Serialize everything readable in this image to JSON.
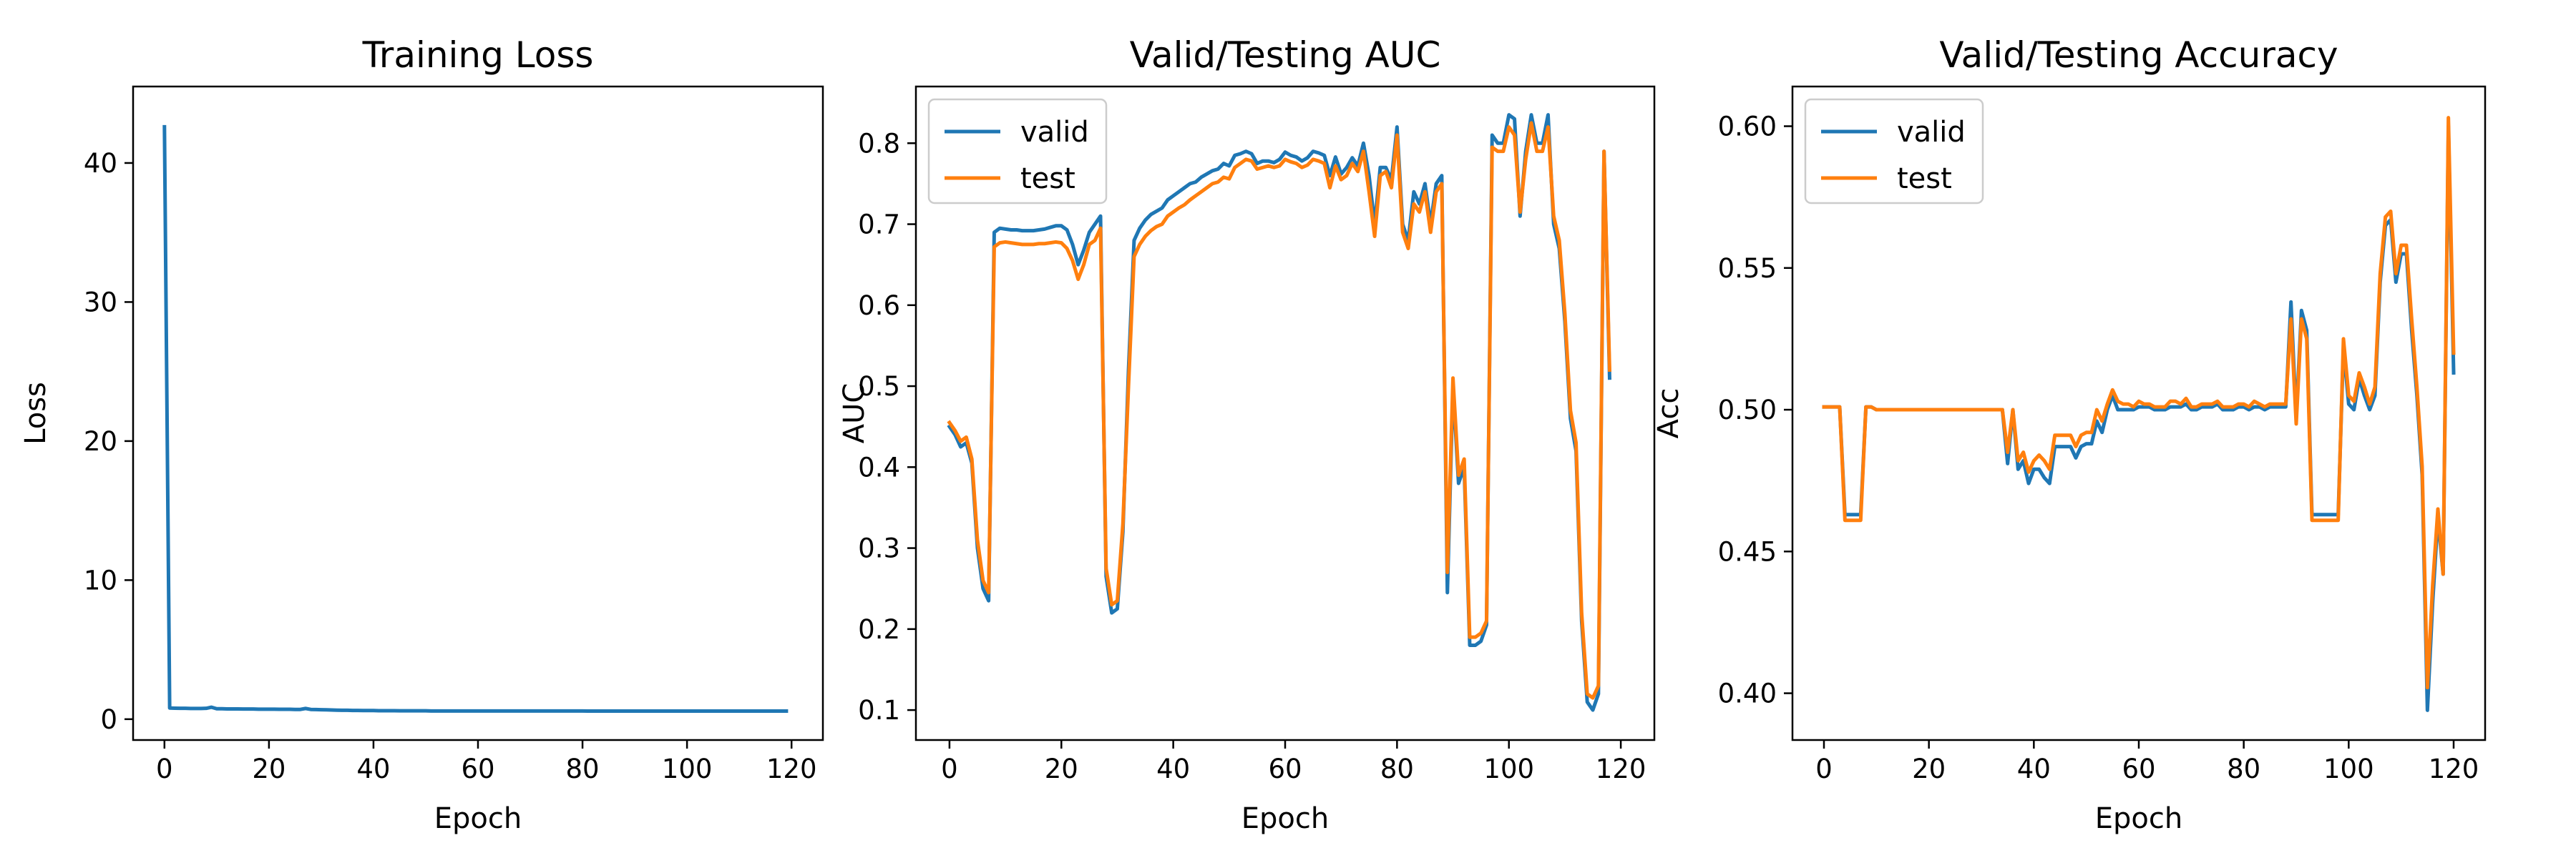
{
  "chart_data": [
    {
      "type": "line",
      "title": "Training Loss",
      "xlabel": "Epoch",
      "ylabel": "Loss",
      "xlim": [
        -6,
        126
      ],
      "ylim": [
        -1.5,
        45.5
      ],
      "xticks": [
        0,
        20,
        40,
        60,
        80,
        100,
        120
      ],
      "yticks": [
        0,
        10,
        20,
        30,
        40
      ],
      "grid": false,
      "legend": null,
      "colors": [
        "#1f77b4"
      ],
      "series": [
        {
          "name": "",
          "color": "#1f77b4",
          "values": [
            42.6,
            0.8,
            0.79,
            0.78,
            0.78,
            0.77,
            0.77,
            0.77,
            0.78,
            0.86,
            0.75,
            0.75,
            0.74,
            0.74,
            0.74,
            0.73,
            0.73,
            0.73,
            0.72,
            0.72,
            0.72,
            0.72,
            0.71,
            0.71,
            0.71,
            0.7,
            0.7,
            0.77,
            0.7,
            0.69,
            0.68,
            0.67,
            0.66,
            0.65,
            0.64,
            0.64,
            0.63,
            0.63,
            0.62,
            0.62,
            0.62,
            0.61,
            0.61,
            0.61,
            0.61,
            0.6,
            0.6,
            0.6,
            0.6,
            0.6,
            0.6,
            0.59,
            0.59,
            0.59,
            0.59,
            0.59,
            0.59,
            0.59,
            0.59,
            0.59,
            0.59,
            0.59,
            0.59,
            0.59,
            0.59,
            0.59,
            0.59,
            0.59,
            0.59,
            0.59,
            0.59,
            0.59,
            0.59,
            0.59,
            0.59,
            0.59,
            0.59,
            0.59,
            0.59,
            0.59,
            0.59,
            0.58,
            0.58,
            0.58,
            0.58,
            0.58,
            0.58,
            0.58,
            0.58,
            0.58,
            0.58,
            0.58,
            0.58,
            0.58,
            0.58,
            0.58,
            0.58,
            0.58,
            0.58,
            0.58,
            0.58,
            0.58,
            0.58,
            0.58,
            0.58,
            0.58,
            0.58,
            0.58,
            0.58,
            0.58,
            0.58,
            0.58,
            0.58,
            0.58,
            0.58,
            0.58,
            0.58,
            0.58,
            0.58,
            0.58
          ]
        }
      ]
    },
    {
      "type": "line",
      "title": "Valid/Testing AUC",
      "xlabel": "Epoch",
      "ylabel": "AUC",
      "xlim": [
        -6,
        126
      ],
      "ylim": [
        0.063,
        0.87
      ],
      "xticks": [
        0,
        20,
        40,
        60,
        80,
        100,
        120
      ],
      "yticks": [
        0.1,
        0.2,
        0.3,
        0.4,
        0.5,
        0.6,
        0.7,
        0.8
      ],
      "grid": false,
      "legend": "top-left",
      "colors": [
        "#1f77b4",
        "#ff7f0e"
      ],
      "series": [
        {
          "name": "valid",
          "color": "#1f77b4",
          "values": [
            0.45,
            0.44,
            0.425,
            0.43,
            0.405,
            0.3,
            0.25,
            0.235,
            0.69,
            0.695,
            0.694,
            0.693,
            0.693,
            0.692,
            0.692,
            0.692,
            0.693,
            0.694,
            0.696,
            0.698,
            0.698,
            0.693,
            0.675,
            0.65,
            0.668,
            0.69,
            0.7,
            0.71,
            0.265,
            0.22,
            0.225,
            0.32,
            0.52,
            0.68,
            0.695,
            0.705,
            0.712,
            0.716,
            0.72,
            0.73,
            0.735,
            0.74,
            0.745,
            0.75,
            0.752,
            0.758,
            0.762,
            0.766,
            0.768,
            0.775,
            0.772,
            0.785,
            0.787,
            0.79,
            0.787,
            0.775,
            0.778,
            0.778,
            0.776,
            0.78,
            0.789,
            0.785,
            0.783,
            0.778,
            0.782,
            0.79,
            0.788,
            0.785,
            0.76,
            0.783,
            0.762,
            0.77,
            0.782,
            0.772,
            0.8,
            0.76,
            0.7,
            0.77,
            0.77,
            0.755,
            0.82,
            0.7,
            0.68,
            0.74,
            0.725,
            0.75,
            0.7,
            0.75,
            0.76,
            0.245,
            0.5,
            0.38,
            0.4,
            0.18,
            0.18,
            0.185,
            0.205,
            0.81,
            0.8,
            0.8,
            0.835,
            0.83,
            0.71,
            0.79,
            0.835,
            0.8,
            0.8,
            0.835,
            0.7,
            0.67,
            0.58,
            0.46,
            0.42,
            0.21,
            0.11,
            0.1,
            0.12,
            0.79,
            0.51
          ]
        },
        {
          "name": "test",
          "color": "#ff7f0e",
          "values": [
            0.455,
            0.445,
            0.432,
            0.437,
            0.41,
            0.31,
            0.26,
            0.245,
            0.672,
            0.677,
            0.678,
            0.677,
            0.676,
            0.675,
            0.675,
            0.675,
            0.676,
            0.676,
            0.677,
            0.678,
            0.677,
            0.67,
            0.655,
            0.632,
            0.65,
            0.675,
            0.68,
            0.695,
            0.275,
            0.23,
            0.235,
            0.33,
            0.5,
            0.66,
            0.675,
            0.685,
            0.692,
            0.697,
            0.7,
            0.71,
            0.715,
            0.72,
            0.724,
            0.73,
            0.735,
            0.74,
            0.745,
            0.75,
            0.752,
            0.758,
            0.756,
            0.77,
            0.775,
            0.78,
            0.778,
            0.768,
            0.77,
            0.772,
            0.77,
            0.772,
            0.78,
            0.777,
            0.775,
            0.77,
            0.773,
            0.78,
            0.778,
            0.775,
            0.745,
            0.772,
            0.755,
            0.76,
            0.775,
            0.765,
            0.79,
            0.74,
            0.685,
            0.76,
            0.765,
            0.745,
            0.81,
            0.69,
            0.67,
            0.725,
            0.715,
            0.74,
            0.69,
            0.74,
            0.75,
            0.27,
            0.51,
            0.39,
            0.41,
            0.19,
            0.19,
            0.195,
            0.21,
            0.795,
            0.79,
            0.79,
            0.82,
            0.81,
            0.715,
            0.78,
            0.825,
            0.79,
            0.79,
            0.82,
            0.71,
            0.68,
            0.59,
            0.47,
            0.43,
            0.22,
            0.12,
            0.115,
            0.13,
            0.79,
            0.52
          ]
        }
      ]
    },
    {
      "type": "line",
      "title": "Valid/Testing Accuracy",
      "xlabel": "Epoch",
      "ylabel": "Acc",
      "xlim": [
        -6,
        126
      ],
      "ylim": [
        0.3835,
        0.614
      ],
      "xticks": [
        0,
        20,
        40,
        60,
        80,
        100,
        120
      ],
      "yticks": [
        0.4,
        0.45,
        0.5,
        0.55,
        0.6
      ],
      "grid": false,
      "legend": "top-left",
      "colors": [
        "#1f77b4",
        "#ff7f0e"
      ],
      "series": [
        {
          "name": "valid",
          "color": "#1f77b4",
          "values": [
            0.501,
            0.501,
            0.501,
            0.501,
            0.463,
            0.463,
            0.463,
            0.463,
            0.501,
            0.501,
            0.5,
            0.5,
            0.5,
            0.5,
            0.5,
            0.5,
            0.5,
            0.5,
            0.5,
            0.5,
            0.5,
            0.5,
            0.5,
            0.5,
            0.5,
            0.5,
            0.5,
            0.5,
            0.5,
            0.5,
            0.5,
            0.5,
            0.5,
            0.5,
            0.5,
            0.481,
            0.5,
            0.479,
            0.482,
            0.474,
            0.479,
            0.479,
            0.476,
            0.474,
            0.487,
            0.487,
            0.487,
            0.487,
            0.483,
            0.487,
            0.488,
            0.488,
            0.496,
            0.492,
            0.5,
            0.505,
            0.5,
            0.5,
            0.5,
            0.5,
            0.501,
            0.501,
            0.501,
            0.5,
            0.5,
            0.5,
            0.501,
            0.501,
            0.501,
            0.502,
            0.5,
            0.5,
            0.501,
            0.501,
            0.501,
            0.502,
            0.5,
            0.5,
            0.5,
            0.501,
            0.501,
            0.5,
            0.501,
            0.501,
            0.5,
            0.501,
            0.501,
            0.501,
            0.501,
            0.538,
            0.497,
            0.535,
            0.528,
            0.463,
            0.463,
            0.463,
            0.463,
            0.463,
            0.463,
            0.522,
            0.502,
            0.5,
            0.511,
            0.505,
            0.5,
            0.505,
            0.545,
            0.565,
            0.567,
            0.545,
            0.555,
            0.555,
            0.528,
            0.505,
            0.477,
            0.394,
            0.432,
            0.462,
            0.442,
            0.6,
            0.513
          ]
        },
        {
          "name": "test",
          "color": "#ff7f0e",
          "values": [
            0.501,
            0.501,
            0.501,
            0.501,
            0.461,
            0.461,
            0.461,
            0.461,
            0.501,
            0.501,
            0.5,
            0.5,
            0.5,
            0.5,
            0.5,
            0.5,
            0.5,
            0.5,
            0.5,
            0.5,
            0.5,
            0.5,
            0.5,
            0.5,
            0.5,
            0.5,
            0.5,
            0.5,
            0.5,
            0.5,
            0.5,
            0.5,
            0.5,
            0.5,
            0.5,
            0.485,
            0.5,
            0.482,
            0.485,
            0.478,
            0.482,
            0.484,
            0.482,
            0.479,
            0.491,
            0.491,
            0.491,
            0.491,
            0.487,
            0.491,
            0.492,
            0.492,
            0.5,
            0.496,
            0.502,
            0.507,
            0.503,
            0.502,
            0.502,
            0.501,
            0.503,
            0.502,
            0.502,
            0.501,
            0.501,
            0.501,
            0.503,
            0.503,
            0.502,
            0.504,
            0.501,
            0.501,
            0.502,
            0.502,
            0.502,
            0.503,
            0.501,
            0.501,
            0.501,
            0.502,
            0.502,
            0.501,
            0.503,
            0.502,
            0.501,
            0.502,
            0.502,
            0.502,
            0.502,
            0.532,
            0.495,
            0.532,
            0.525,
            0.461,
            0.461,
            0.461,
            0.461,
            0.461,
            0.461,
            0.525,
            0.505,
            0.503,
            0.513,
            0.508,
            0.502,
            0.508,
            0.548,
            0.568,
            0.57,
            0.548,
            0.558,
            0.558,
            0.532,
            0.508,
            0.48,
            0.402,
            0.438,
            0.465,
            0.442,
            0.603,
            0.52
          ]
        }
      ]
    }
  ]
}
